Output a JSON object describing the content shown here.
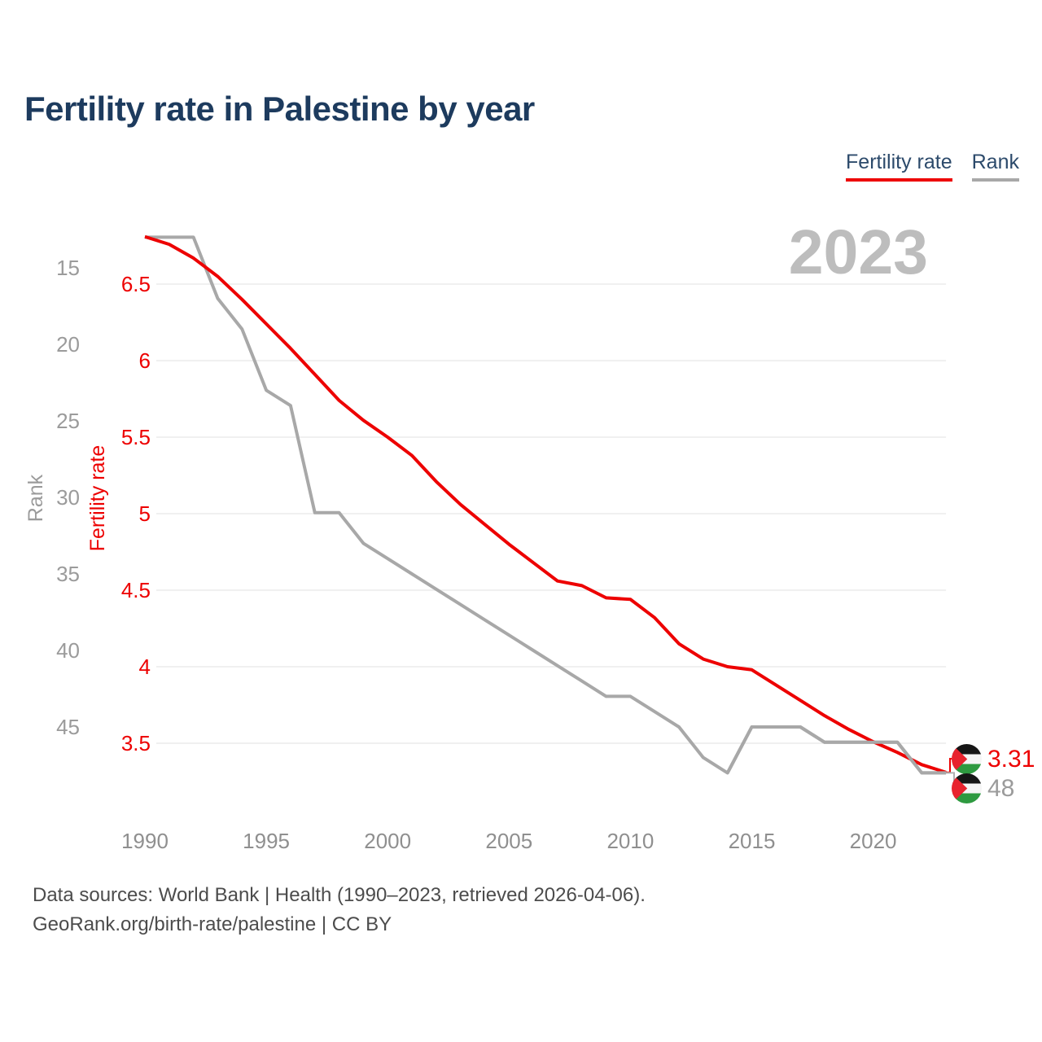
{
  "header": {
    "title": "Fertility rate in Palestine by year"
  },
  "legend": {
    "items": [
      {
        "label": "Fertility rate",
        "color": "#ed0000"
      },
      {
        "label": "Rank",
        "color": "#a8a8a8"
      }
    ]
  },
  "watermark": "2023",
  "chart_data": {
    "type": "line",
    "title": "Fertility rate in Palestine by year",
    "x": [
      1990,
      1991,
      1992,
      1993,
      1994,
      1995,
      1996,
      1997,
      1998,
      1999,
      2000,
      2001,
      2002,
      2003,
      2004,
      2005,
      2006,
      2007,
      2008,
      2009,
      2010,
      2011,
      2012,
      2013,
      2014,
      2015,
      2016,
      2017,
      2018,
      2019,
      2020,
      2021,
      2022,
      2023
    ],
    "x_ticks": [
      1990,
      1995,
      2000,
      2005,
      2010,
      2015,
      2020
    ],
    "series": [
      {
        "name": "Fertility rate",
        "axis": "fertility",
        "color": "#ed0000",
        "end_label": "3.31",
        "values": [
          6.81,
          6.76,
          6.67,
          6.55,
          6.4,
          6.24,
          6.08,
          5.91,
          5.74,
          5.61,
          5.5,
          5.38,
          5.21,
          5.06,
          4.93,
          4.8,
          4.68,
          4.56,
          4.53,
          4.45,
          4.44,
          4.32,
          4.15,
          4.05,
          4.0,
          3.98,
          3.88,
          3.78,
          3.68,
          3.59,
          3.51,
          3.44,
          3.36,
          3.31
        ]
      },
      {
        "name": "Rank",
        "axis": "rank",
        "color": "#a8a8a8",
        "end_label": "48",
        "values": [
          13,
          13,
          13,
          17,
          19,
          23,
          24,
          31,
          31,
          33,
          34,
          35,
          36,
          37,
          38,
          39,
          40,
          41,
          42,
          43,
          43,
          44,
          45,
          47,
          48,
          45,
          45,
          45,
          46,
          46,
          46,
          46,
          48,
          48
        ]
      }
    ],
    "axes": {
      "fertility": {
        "label": "Fertility rate",
        "color": "#ed0000",
        "ticks": [
          6.5,
          6,
          5.5,
          5,
          4.5,
          4,
          3.5
        ],
        "range": [
          3.2,
          6.9
        ]
      },
      "rank": {
        "label": "Rank",
        "color": "#9b9b9b",
        "ticks": [
          15,
          20,
          25,
          30,
          35,
          40,
          45
        ],
        "range": [
          13,
          48
        ],
        "inverted": true
      }
    },
    "grid": true,
    "legend_position": "top-right",
    "watermark": "2023"
  },
  "footer": {
    "line1": "Data sources: World Bank | Health (1990–2023, retrieved 2026-04-06).",
    "line2": "GeoRank.org/birth-rate/palestine | CC BY"
  }
}
